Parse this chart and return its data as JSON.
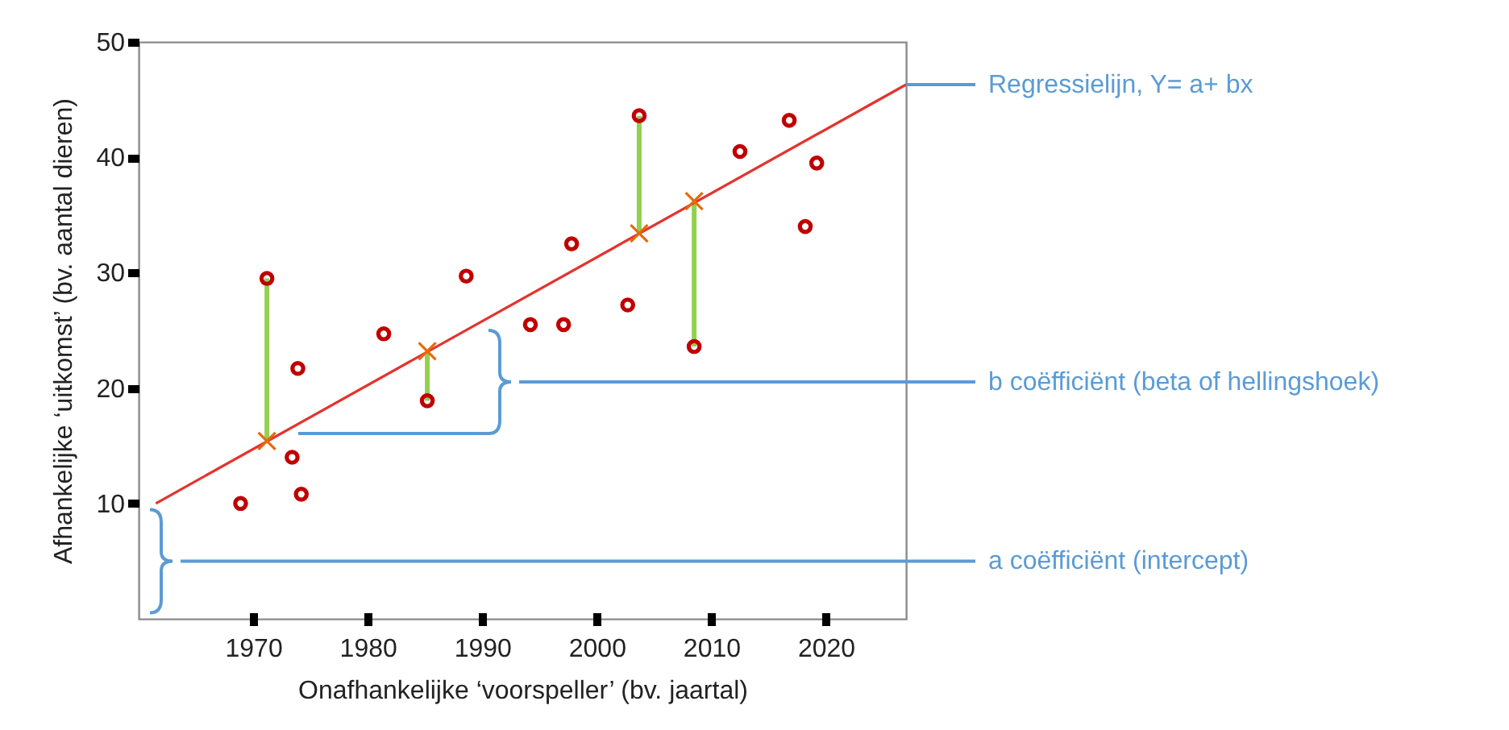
{
  "chart_data": {
    "type": "scatter",
    "xlabel": "Onafhankelijke ‘voorspeller’ (bv. jaartal)",
    "ylabel": "Afhankelijke ‘uitkomst’ (bv. aantal dieren)",
    "xlim": [
      1960,
      2027
    ],
    "ylim": [
      0,
      50
    ],
    "xticks": [
      1970,
      1980,
      1990,
      2000,
      2010,
      2020
    ],
    "yticks": [
      10,
      20,
      30,
      40,
      50
    ],
    "grid": false,
    "annotations": [
      {
        "text": "Regressielijn, Y= a+ bx",
        "x": 2027,
        "y": 46.3
      },
      "b coëfficiënt (beta of hellingshoek)"
    ],
    "ref_lines": [
      {
        "axis": "y",
        "value": 5,
        "label": "a coëfficiënt (intercept)",
        "color": "#5b9bd5"
      }
    ],
    "series": [
      {
        "type": "line",
        "color": "#92d050",
        "x": [
          1971.2,
          1971.2
        ],
        "values": [
          29.5,
          15.4
        ]
      },
      {
        "type": "line",
        "color": "#92d050",
        "x": [
          1985.2,
          1985.2
        ],
        "values": [
          18.9,
          23.2
        ]
      },
      {
        "type": "line",
        "color": "#92d050",
        "x": [
          2003.7,
          2003.7
        ],
        "values": [
          43.6,
          33.4
        ]
      },
      {
        "type": "line",
        "color": "#92d050",
        "x": [
          2008.5,
          2008.5
        ],
        "values": [
          23.6,
          36.2
        ]
      },
      {
        "type": "line",
        "color": "#e5322d",
        "marker": "none",
        "x": [
          1961.5,
          2027
        ],
        "values": [
          10,
          46.3
        ]
      },
      {
        "type": "scatter",
        "color": "#e46c0a",
        "marker": "cross",
        "x": [
          1971.2,
          1985.2,
          2003.7,
          2008.5
        ],
        "values": [
          15.4,
          23.2,
          33.4,
          36.2
        ]
      },
      {
        "type": "scatter",
        "color": "#c00000",
        "marker": "circle",
        "x": [
          1968.9,
          1971.2,
          1973.4,
          1974.2,
          1973.9,
          1981.4,
          1985.2,
          1988.6,
          1994.2,
          1997.1,
          1997.8,
          2002.7,
          2003.7,
          2008.5,
          2012.5,
          2016.8,
          2018.2,
          2019.2
        ],
        "values": [
          10,
          29.5,
          14,
          10.8,
          21.7,
          24.7,
          18.9,
          29.7,
          25.5,
          25.5,
          32.5,
          27.2,
          43.6,
          23.6,
          40.5,
          43.2,
          34,
          39.5
        ]
      }
    ]
  }
}
